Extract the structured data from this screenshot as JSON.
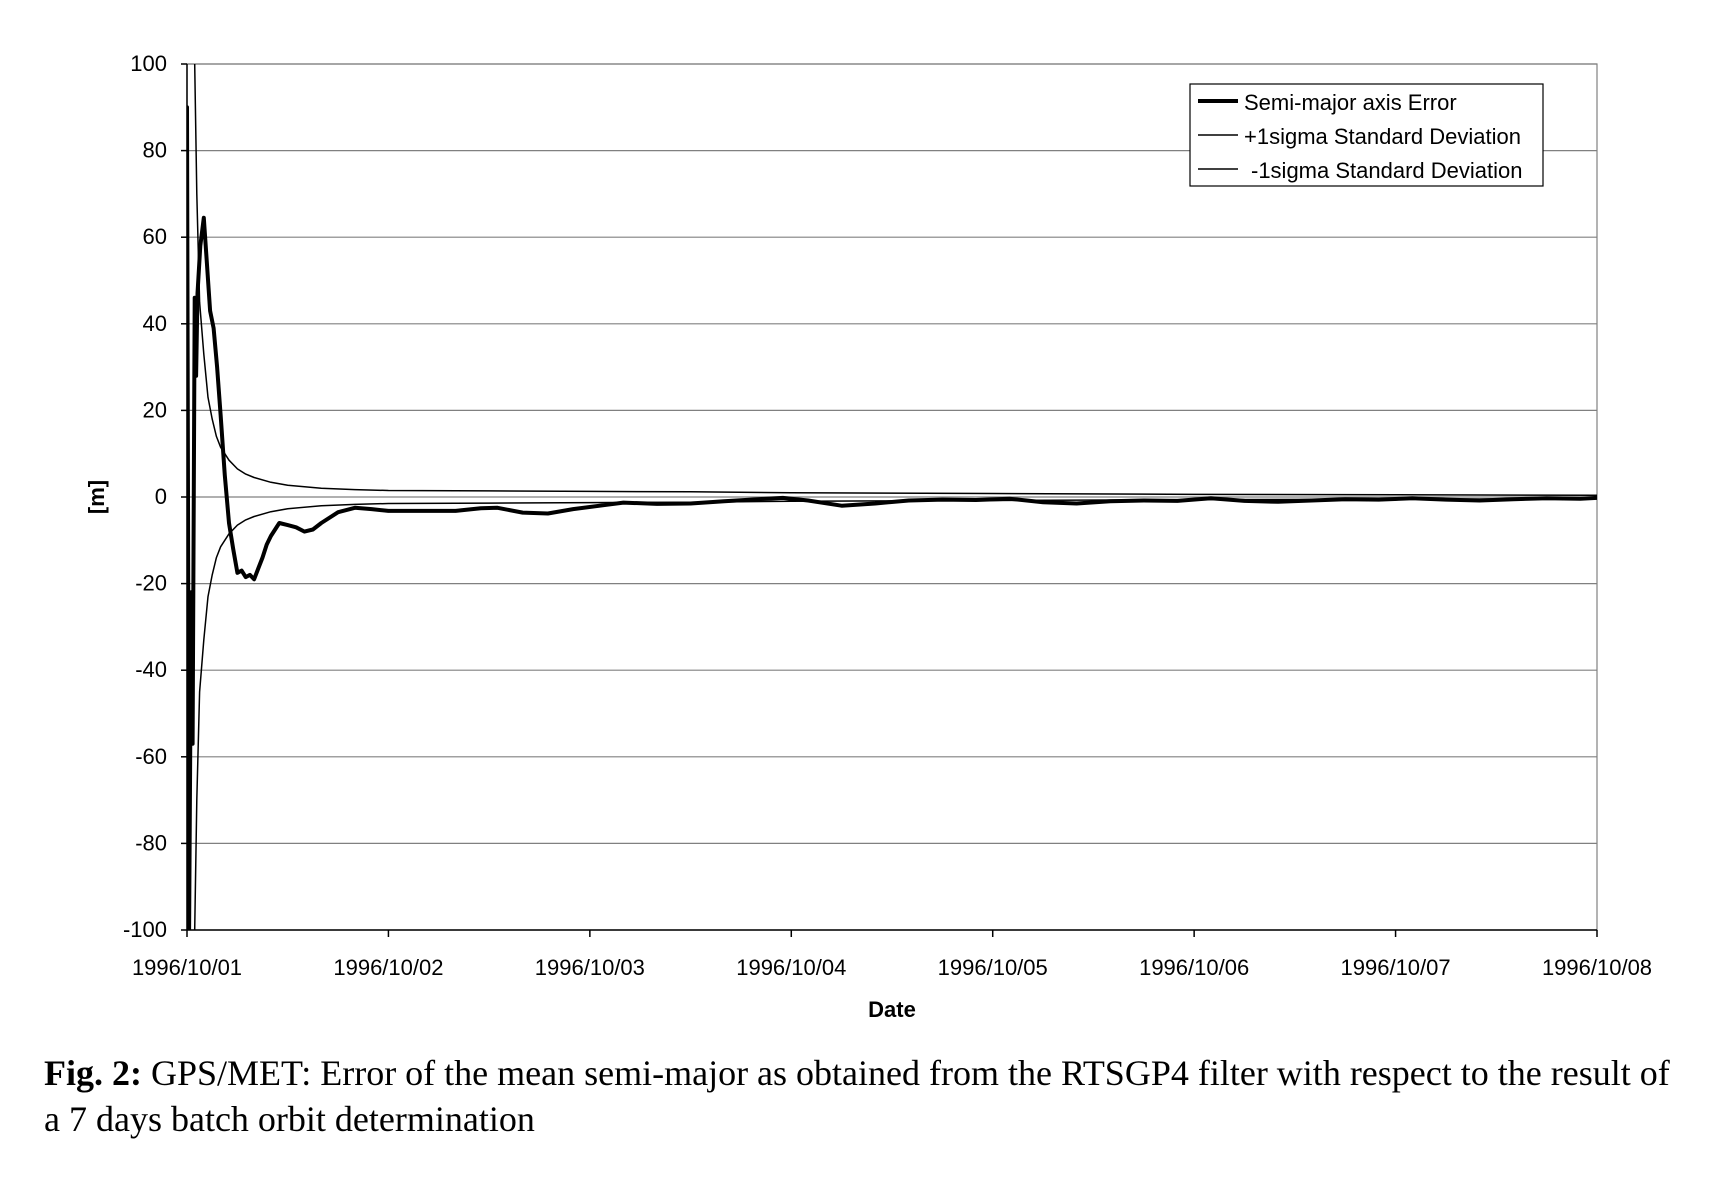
{
  "chart_data": {
    "type": "line",
    "xlabel": "Date",
    "ylabel": "[m]",
    "ylim": [
      -100,
      100
    ],
    "yticks": [
      100,
      80,
      60,
      40,
      20,
      0,
      -20,
      -40,
      -60,
      -80,
      -100
    ],
    "xlim": [
      "1996/10/01",
      "1996/10/08"
    ],
    "xticks": [
      "1996/10/01",
      "1996/10/02",
      "1996/10/03",
      "1996/10/04",
      "1996/10/05",
      "1996/10/06",
      "1996/10/07",
      "1996/10/08"
    ],
    "grid": "horizontal",
    "legend_position": "top-right",
    "series": [
      {
        "name": "Semi-major axis Error",
        "color": "#000000",
        "style": "thick",
        "points": [
          [
            "1996/10/01 00:00",
            90
          ],
          [
            "1996/10/01 00:15",
            -100
          ],
          [
            "1996/10/01 00:30",
            -22
          ],
          [
            "1996/10/01 00:40",
            -57
          ],
          [
            "1996/10/01 00:55",
            46
          ],
          [
            "1996/10/01 01:05",
            28
          ],
          [
            "1996/10/01 01:15",
            47
          ],
          [
            "1996/10/01 01:35",
            58
          ],
          [
            "1996/10/01 02:00",
            64.5
          ],
          [
            "1996/10/01 02:20",
            55
          ],
          [
            "1996/10/01 02:45",
            43
          ],
          [
            "1996/10/01 03:10",
            39
          ],
          [
            "1996/10/01 03:35",
            30
          ],
          [
            "1996/10/01 04:00",
            19
          ],
          [
            "1996/10/01 04:30",
            5
          ],
          [
            "1996/10/01 05:00",
            -6
          ],
          [
            "1996/10/01 05:30",
            -12
          ],
          [
            "1996/10/01 06:00",
            -17.5
          ],
          [
            "1996/10/01 06:30",
            -17
          ],
          [
            "1996/10/01 07:00",
            -18.5
          ],
          [
            "1996/10/01 07:30",
            -18
          ],
          [
            "1996/10/01 08:00",
            -19
          ],
          [
            "1996/10/01 08:30",
            -16.5
          ],
          [
            "1996/10/01 09:00",
            -14
          ],
          [
            "1996/10/01 09:30",
            -11
          ],
          [
            "1996/10/01 10:00",
            -9
          ],
          [
            "1996/10/01 10:30",
            -7.5
          ],
          [
            "1996/10/01 11:00",
            -6
          ],
          [
            "1996/10/01 12:00",
            -6.5
          ],
          [
            "1996/10/01 13:00",
            -7
          ],
          [
            "1996/10/01 14:00",
            -8
          ],
          [
            "1996/10/01 15:00",
            -7.5
          ],
          [
            "1996/10/01 16:00",
            -6
          ],
          [
            "1996/10/01 18:00",
            -3.5
          ],
          [
            "1996/10/01 20:00",
            -2.5
          ],
          [
            "1996/10/01 22:00",
            -2.8
          ],
          [
            "1996/10/02 00:00",
            -3.2
          ],
          [
            "1996/10/02 04:00",
            -3.2
          ],
          [
            "1996/10/02 08:00",
            -3.2
          ],
          [
            "1996/10/02 11:00",
            -2.6
          ],
          [
            "1996/10/02 13:00",
            -2.5
          ],
          [
            "1996/10/02 16:00",
            -3.6
          ],
          [
            "1996/10/02 19:00",
            -3.8
          ],
          [
            "1996/10/02 22:00",
            -2.8
          ],
          [
            "1996/10/03 02:00",
            -1.8
          ],
          [
            "1996/10/03 04:00",
            -1.3
          ],
          [
            "1996/10/03 08:00",
            -1.6
          ],
          [
            "1996/10/03 12:00",
            -1.5
          ],
          [
            "1996/10/03 16:00",
            -1.0
          ],
          [
            "1996/10/03 20:00",
            -0.5
          ],
          [
            "1996/10/03 23:00",
            -0.2
          ],
          [
            "1996/10/04 02:00",
            -0.8
          ],
          [
            "1996/10/04 06:00",
            -2.0
          ],
          [
            "1996/10/04 10:00",
            -1.5
          ],
          [
            "1996/10/04 14:00",
            -0.8
          ],
          [
            "1996/10/04 18:00",
            -0.6
          ],
          [
            "1996/10/04 22:00",
            -0.7
          ],
          [
            "1996/10/05 02:00",
            -0.4
          ],
          [
            "1996/10/05 06:00",
            -1.2
          ],
          [
            "1996/10/05 10:00",
            -1.5
          ],
          [
            "1996/10/05 14:00",
            -1.0
          ],
          [
            "1996/10/05 18:00",
            -0.8
          ],
          [
            "1996/10/05 22:00",
            -0.9
          ],
          [
            "1996/10/06 02:00",
            -0.3
          ],
          [
            "1996/10/06 06:00",
            -0.9
          ],
          [
            "1996/10/06 10:00",
            -1.1
          ],
          [
            "1996/10/06 14:00",
            -0.8
          ],
          [
            "1996/10/06 18:00",
            -0.5
          ],
          [
            "1996/10/06 22:00",
            -0.6
          ],
          [
            "1996/10/07 02:00",
            -0.3
          ],
          [
            "1996/10/07 06:00",
            -0.6
          ],
          [
            "1996/10/07 10:00",
            -0.8
          ],
          [
            "1996/10/07 14:00",
            -0.5
          ],
          [
            "1996/10/07 18:00",
            -0.3
          ],
          [
            "1996/10/07 22:00",
            -0.4
          ],
          [
            "1996/10/08 00:00",
            -0.2
          ]
        ]
      },
      {
        "name": "+1sigma Standard Deviation",
        "color": "#000000",
        "style": "thin",
        "points": [
          [
            "1996/10/01 00:50",
            110
          ],
          [
            "1996/10/01 01:10",
            70
          ],
          [
            "1996/10/01 01:30",
            45
          ],
          [
            "1996/10/01 02:00",
            33
          ],
          [
            "1996/10/01 02:30",
            23
          ],
          [
            "1996/10/01 03:00",
            18
          ],
          [
            "1996/10/01 03:30",
            14
          ],
          [
            "1996/10/01 04:00",
            11.5
          ],
          [
            "1996/10/01 05:00",
            8.5
          ],
          [
            "1996/10/01 06:00",
            6.5
          ],
          [
            "1996/10/01 07:00",
            5.3
          ],
          [
            "1996/10/01 08:00",
            4.5
          ],
          [
            "1996/10/01 10:00",
            3.4
          ],
          [
            "1996/10/01 12:00",
            2.7
          ],
          [
            "1996/10/01 16:00",
            2.0
          ],
          [
            "1996/10/01 20:00",
            1.7
          ],
          [
            "1996/10/02 00:00",
            1.5
          ],
          [
            "1996/10/02 12:00",
            1.4
          ],
          [
            "1996/10/03 00:00",
            1.3
          ],
          [
            "1996/10/03 12:00",
            1.2
          ],
          [
            "1996/10/04 00:00",
            1.0
          ],
          [
            "1996/10/05 00:00",
            0.8
          ],
          [
            "1996/10/06 00:00",
            0.6
          ],
          [
            "1996/10/07 00:00",
            0.5
          ],
          [
            "1996/10/08 00:00",
            0.4
          ]
        ]
      },
      {
        "name": "-1sigma Standard Deviation",
        "color": "#000000",
        "style": "thin",
        "points": [
          [
            "1996/10/01 00:50",
            -110
          ],
          [
            "1996/10/01 01:10",
            -70
          ],
          [
            "1996/10/01 01:30",
            -45
          ],
          [
            "1996/10/01 02:00",
            -33
          ],
          [
            "1996/10/01 02:30",
            -23
          ],
          [
            "1996/10/01 03:00",
            -18
          ],
          [
            "1996/10/01 03:30",
            -14
          ],
          [
            "1996/10/01 04:00",
            -11.5
          ],
          [
            "1996/10/01 05:00",
            -8.5
          ],
          [
            "1996/10/01 06:00",
            -6.5
          ],
          [
            "1996/10/01 07:00",
            -5.3
          ],
          [
            "1996/10/01 08:00",
            -4.5
          ],
          [
            "1996/10/01 10:00",
            -3.4
          ],
          [
            "1996/10/01 12:00",
            -2.7
          ],
          [
            "1996/10/01 16:00",
            -2.0
          ],
          [
            "1996/10/01 20:00",
            -1.7
          ],
          [
            "1996/10/02 00:00",
            -1.5
          ],
          [
            "1996/10/02 12:00",
            -1.4
          ],
          [
            "1996/10/03 00:00",
            -1.3
          ],
          [
            "1996/10/03 12:00",
            -1.2
          ],
          [
            "1996/10/04 00:00",
            -1.0
          ],
          [
            "1996/10/05 00:00",
            -0.8
          ],
          [
            "1996/10/06 00:00",
            -0.6
          ],
          [
            "1996/10/07 00:00",
            -0.5
          ],
          [
            "1996/10/08 00:00",
            -0.4
          ]
        ]
      }
    ]
  },
  "caption": {
    "label": "Fig. 2:",
    "text": " GPS/MET: Error of the mean semi-major as obtained from the RTSGP4 filter with respect to the result of a 7 days batch orbit determination"
  }
}
